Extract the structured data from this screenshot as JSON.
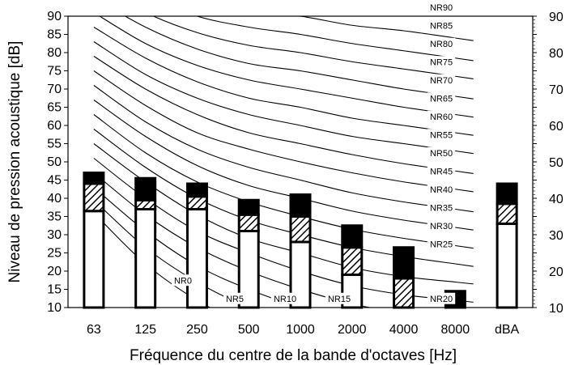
{
  "chart_data": {
    "type": "bar",
    "ylabel": "Niveau de pression acoustique [dB]",
    "xlabel": "Fréquence du centre de la bande d'octaves [Hz]",
    "categories": [
      "63",
      "125",
      "250",
      "500",
      "1000",
      "2000",
      "4000",
      "8000",
      "dBA"
    ],
    "ylim": [
      10,
      90
    ],
    "yticks": [
      10,
      15,
      20,
      25,
      30,
      35,
      40,
      45,
      50,
      55,
      60,
      65,
      70,
      75,
      80,
      85,
      90
    ],
    "grid": false,
    "secondary_y_axis": true,
    "bars": [
      {
        "category": "63",
        "white_top": 36.5,
        "hatched_top": 44,
        "black_top": 47
      },
      {
        "category": "125",
        "white_top": 37,
        "hatched_top": 39.5,
        "black_top": 45.5
      },
      {
        "category": "250",
        "white_top": 37,
        "hatched_top": 40.5,
        "black_top": 44
      },
      {
        "category": "500",
        "white_top": 31,
        "hatched_top": 35.5,
        "black_top": 39.5
      },
      {
        "category": "1000",
        "white_top": 28,
        "hatched_top": 35,
        "black_top": 41
      },
      {
        "category": "2000",
        "white_top": 19,
        "hatched_top": 26.5,
        "black_top": 32.5
      },
      {
        "category": "4000",
        "white_top": 10,
        "hatched_top": 18,
        "black_top": 26.5
      },
      {
        "category": "8000",
        "white_top": 10,
        "hatched_top": 10,
        "black_top": 14.5
      },
      {
        "category": "dBA",
        "white_top": 33,
        "hatched_top": 38.5,
        "black_top": 44
      }
    ],
    "nr_curves": [
      {
        "name": "NR0",
        "values": [
          36,
          22,
          12,
          5,
          0,
          -4,
          -6,
          -8
        ],
        "label": "NR0"
      },
      {
        "name": "NR5",
        "values": [
          39.5,
          26.5,
          17,
          10,
          5,
          1,
          -1.5,
          -3
        ],
        "label": "NR5"
      },
      {
        "name": "NR10",
        "values": [
          43,
          31,
          21.5,
          15,
          10,
          6,
          3.5,
          2
        ],
        "label": "NR10"
      },
      {
        "name": "NR15",
        "values": [
          47,
          35.5,
          26.5,
          20,
          15,
          11,
          8.5,
          7
        ],
        "label": "NR15"
      },
      {
        "name": "NR20",
        "values": [
          51,
          40,
          31,
          25,
          20,
          16,
          13.5,
          12
        ],
        "label": "NR20"
      },
      {
        "name": "NR25",
        "values": [
          55,
          44.5,
          35.5,
          29,
          25,
          21,
          18.5,
          17
        ],
        "label": "NR25"
      },
      {
        "name": "NR30",
        "values": [
          59,
          48.5,
          40,
          34,
          30,
          26.5,
          24,
          22
        ],
        "label": "NR30"
      },
      {
        "name": "NR35",
        "values": [
          63,
          52.5,
          44.5,
          39,
          35,
          31.5,
          29,
          27
        ],
        "label": "NR35"
      },
      {
        "name": "NR40",
        "values": [
          67,
          57,
          49,
          43.5,
          40,
          36.5,
          34,
          32
        ],
        "label": "NR40"
      },
      {
        "name": "NR45",
        "values": [
          71,
          61,
          53.5,
          48.5,
          45,
          41.5,
          39,
          37
        ],
        "label": "NR45"
      },
      {
        "name": "NR50",
        "values": [
          75,
          65.5,
          58,
          53.5,
          50,
          47,
          44.5,
          42.5
        ],
        "label": "NR50"
      },
      {
        "name": "NR55",
        "values": [
          79,
          70,
          63,
          58,
          55,
          52,
          49.5,
          47.5
        ],
        "label": "NR55"
      },
      {
        "name": "NR60",
        "values": [
          83,
          74,
          67.5,
          63,
          60,
          57,
          55,
          53
        ],
        "label": "NR60"
      },
      {
        "name": "NR65",
        "values": [
          87,
          78.5,
          72,
          67.5,
          65,
          62,
          60,
          58
        ],
        "label": "NR65"
      },
      {
        "name": "NR70",
        "values": [
          91,
          82.5,
          76.5,
          72.5,
          70,
          67.5,
          65,
          63
        ],
        "label": "NR70"
      },
      {
        "name": "NR75",
        "values": [
          95,
          87,
          81,
          77,
          75,
          72.5,
          70,
          68
        ],
        "label": "NR75"
      },
      {
        "name": "NR80",
        "values": [
          99,
          91,
          85.5,
          82,
          80,
          77.5,
          75.5,
          73.5
        ],
        "label": "NR80"
      },
      {
        "name": "NR85",
        "values": [
          103,
          95.5,
          90,
          87,
          85,
          82.5,
          80.5,
          78.5
        ],
        "label": "NR85"
      },
      {
        "name": "NR90",
        "values": [
          107,
          100,
          94.5,
          91.5,
          90,
          87.5,
          86,
          84
        ],
        "label": "NR90"
      }
    ]
  }
}
